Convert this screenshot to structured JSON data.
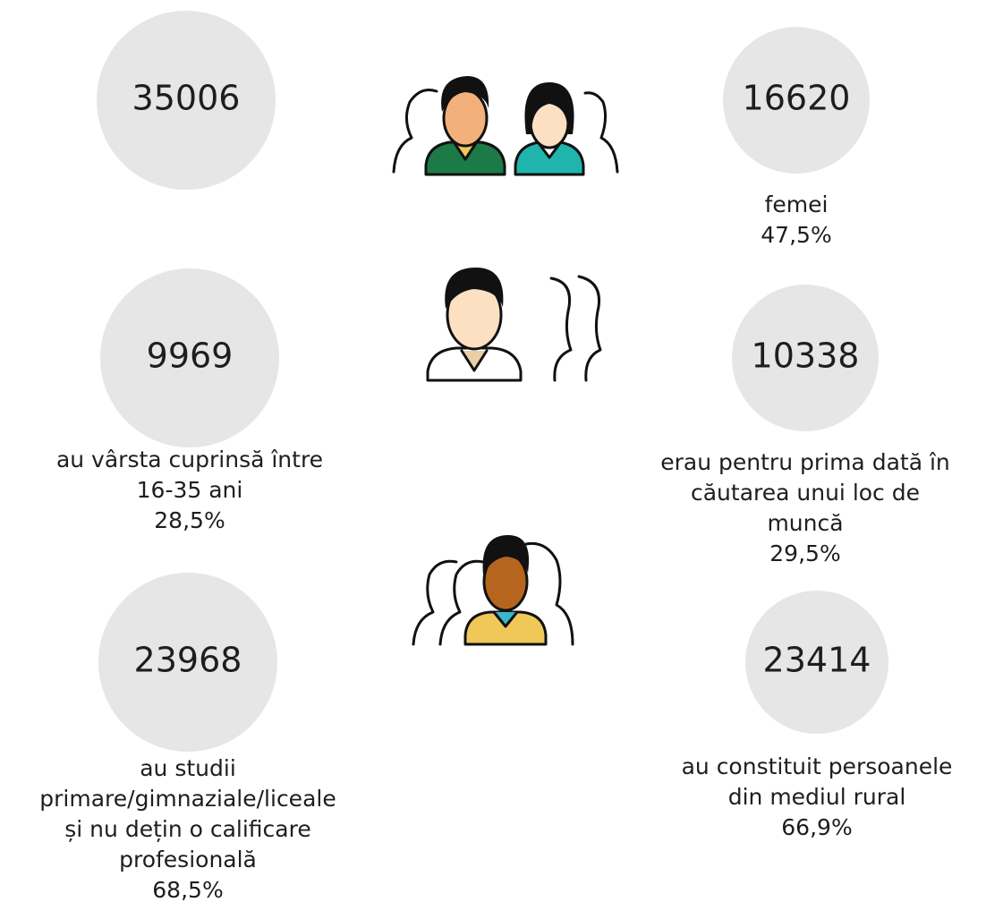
{
  "stats": [
    {
      "value": 35006,
      "lines": [],
      "percent": null
    },
    {
      "value": 16620,
      "lines": [
        "femei"
      ],
      "percent": "47,5%"
    },
    {
      "value": 9969,
      "lines": [
        "au vârsta cuprinsă între",
        "16-35 ani"
      ],
      "percent": "28,5%"
    },
    {
      "value": 10338,
      "lines": [
        "erau pentru prima dată în",
        "căutarea unui loc de",
        "muncă"
      ],
      "percent": "29,5%"
    },
    {
      "value": 23968,
      "lines": [
        "au studii",
        "primare/gimnaziale/liceale",
        "și nu dețin o calificare",
        "profesională"
      ],
      "percent": "68,5%"
    },
    {
      "value": 23414,
      "lines": [
        "au constituit persoanele",
        "din mediul rural"
      ],
      "percent": "66,9%"
    }
  ]
}
